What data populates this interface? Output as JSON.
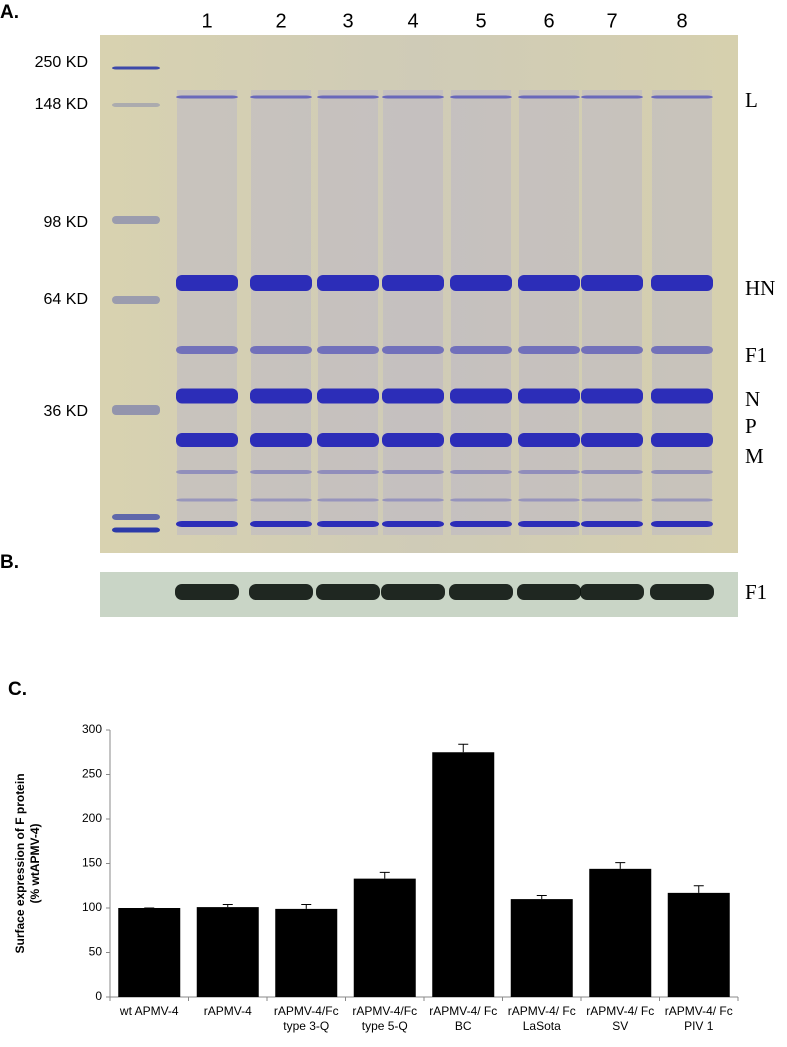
{
  "panels": {
    "a": "A.",
    "b": "B.",
    "c": "C."
  },
  "gel": {
    "lanes": [
      "1",
      "2",
      "3",
      "4",
      "5",
      "6",
      "7",
      "8"
    ],
    "markers": [
      "250 KD",
      "148 KD",
      "98 KD",
      "64 KD",
      "36 KD"
    ],
    "bands": [
      "L",
      "HN",
      "F1",
      "N",
      "P",
      "M"
    ]
  },
  "blot": {
    "band": "F1"
  },
  "chart_data": {
    "type": "bar",
    "ylabel": [
      "Surface expression of F protein",
      "(% wtAPMV-4)"
    ],
    "categories": [
      [
        "wt APMV-4"
      ],
      [
        "rAPMV-4"
      ],
      [
        "rAPMV-4/Fc",
        "type 3-Q"
      ],
      [
        "rAPMV-4/Fc",
        "type 5-Q"
      ],
      [
        "rAPMV-4/ Fc",
        "BC"
      ],
      [
        "rAPMV-4/ Fc",
        "LaSota"
      ],
      [
        "rAPMV-4/ Fc",
        "SV"
      ],
      [
        "rAPMV-4/ Fc",
        "PIV 1"
      ]
    ],
    "values": [
      100,
      101,
      99,
      133,
      275,
      110,
      144,
      117
    ],
    "errors": [
      0,
      3,
      5,
      7,
      9,
      4,
      7,
      8
    ],
    "color": "#000000",
    "ylim": [
      0,
      300
    ],
    "yticks": [
      0,
      50,
      100,
      150,
      200,
      250,
      300
    ],
    "grid": false
  }
}
